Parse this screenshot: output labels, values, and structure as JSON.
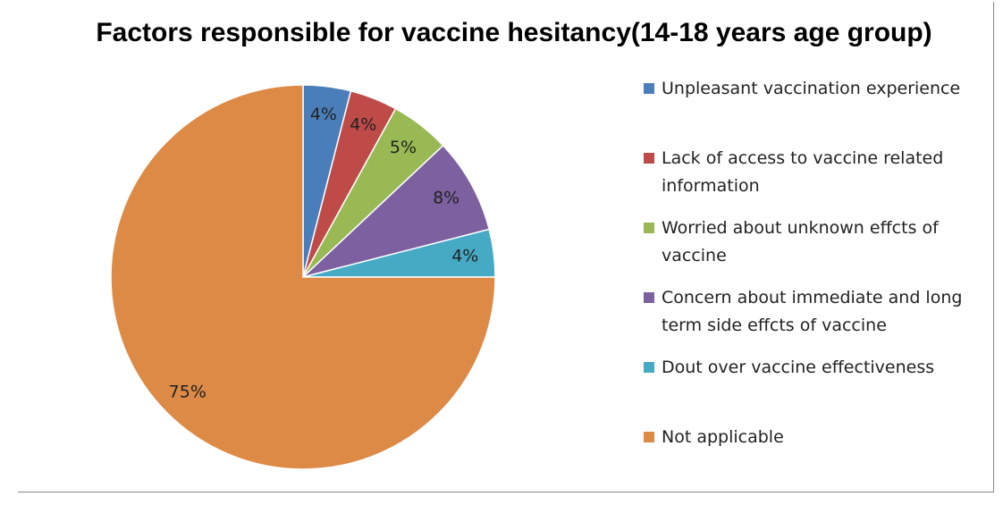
{
  "chart_data": {
    "type": "pie",
    "title": "Factors responsible for vaccine hesitancy(14-18 years age group)",
    "categories": [
      "Unpleasant vaccination experience",
      "Lack of access to vaccine related information",
      "Worried about unknown effcts of vaccine",
      "Concern about immediate and long term side effcts of vaccine",
      "Dout over vaccine effectiveness",
      "Not applicable"
    ],
    "values": [
      4,
      4,
      5,
      8,
      4,
      75
    ],
    "value_labels": [
      "4%",
      "4%",
      "5%",
      "8%",
      "4%",
      "75%"
    ],
    "colors": [
      "#4a7ebb",
      "#be4b48",
      "#98b954",
      "#7d60a0",
      "#46aac5",
      "#dd8a47"
    ]
  }
}
